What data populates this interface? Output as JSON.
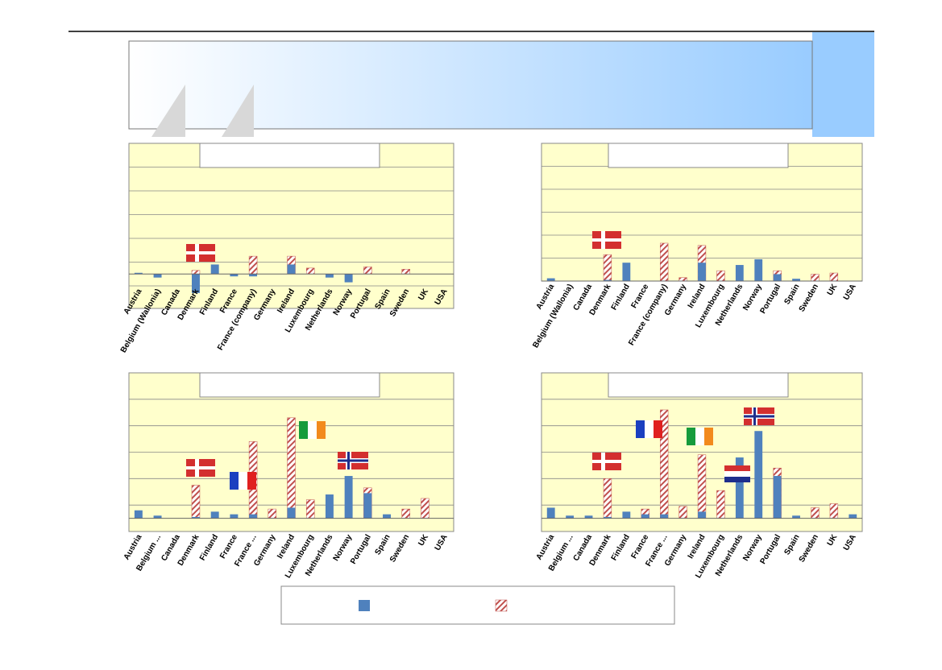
{
  "chart_data": [
    {
      "type": "bar",
      "grid": true,
      "ylim": [
        -0.5,
        5.5
      ],
      "yticks": [
        -0.5,
        0.5,
        1.5,
        2.5,
        3.5,
        4.5
      ],
      "categories": [
        "Austria",
        "Belgium (Wallonia)",
        "Canada",
        "Denmark",
        "Finland",
        "France",
        "France (company)",
        "Germany",
        "Ireland",
        "Luxembourg",
        "Netherlands",
        "Norway",
        "Portugal",
        "Spain",
        "Sweden",
        "UK",
        "USA"
      ],
      "series": [
        {
          "color": "#4f81bd",
          "values": [
            0.05,
            -0.15,
            0,
            -0.8,
            0.4,
            -0.1,
            -0.1,
            0,
            0.4,
            0,
            -0.15,
            -0.35,
            0,
            0,
            0,
            0,
            0
          ]
        },
        {
          "color": "#c0504d",
          "pattern": "hatch",
          "values": [
            0,
            0,
            0,
            0.15,
            0,
            0,
            0.75,
            0,
            0.75,
            0.25,
            0,
            0,
            0.3,
            0,
            0.2,
            0,
            0
          ]
        }
      ]
    },
    {
      "type": "bar",
      "grid": true,
      "ylim": [
        0,
        6
      ],
      "yticks": [
        0,
        1,
        2,
        3,
        4,
        5
      ],
      "categories": [
        "Austria",
        "Belgium (Wallonia)",
        "Canada",
        "Denmark",
        "Finland",
        "France",
        "France (company)",
        "Germany",
        "Ireland",
        "Luxembourg",
        "Netherlands",
        "Norway",
        "Portugal",
        "Spain",
        "Sweden",
        "UK",
        "USA"
      ],
      "series": [
        {
          "color": "#4f81bd",
          "values": [
            0.12,
            0,
            0,
            0.05,
            0.8,
            0,
            0,
            0,
            0.8,
            0,
            0.7,
            0.95,
            0.3,
            0.1,
            0,
            0,
            0
          ]
        },
        {
          "color": "#c0504d",
          "pattern": "hatch",
          "values": [
            0,
            0,
            0,
            1.15,
            0,
            0,
            1.65,
            0.15,
            1.55,
            0.45,
            0,
            0,
            0.45,
            0,
            0.3,
            0.35,
            0
          ]
        }
      ]
    },
    {
      "type": "bar",
      "grid": true,
      "ylim": [
        -0.5,
        5.5
      ],
      "yticks": [
        0.5,
        1.5,
        2.5,
        3.5,
        4.5
      ],
      "categories": [
        "Austria",
        "Belgium ...",
        "Canada",
        "Denmark",
        "Finland",
        "France",
        "France ...",
        "Germany",
        "Ireland",
        "Luxembourg",
        "Netherlands",
        "Norway",
        "Portugal",
        "Spain",
        "Sweden",
        "UK",
        "USA"
      ],
      "series": [
        {
          "color": "#4f81bd",
          "values": [
            0.3,
            0.1,
            0,
            0.05,
            0.25,
            0.15,
            0.15,
            0,
            0.4,
            0,
            0.9,
            1.6,
            0.95,
            0.15,
            0,
            0,
            0
          ]
        },
        {
          "color": "#c0504d",
          "pattern": "hatch",
          "values": [
            0,
            0,
            0,
            1.25,
            0,
            0,
            2.9,
            0.35,
            3.8,
            0.7,
            0,
            0,
            1.15,
            0,
            0.35,
            0.75,
            0
          ]
        }
      ]
    },
    {
      "type": "bar",
      "grid": true,
      "ylim": [
        -0.5,
        5.5
      ],
      "yticks": [
        0.5,
        1.5,
        2.5,
        3.5,
        4.5
      ],
      "categories": [
        "Austria",
        "Belgium ...",
        "Canada",
        "Denmark",
        "Finland",
        "France",
        "France ...",
        "Germany",
        "Ireland",
        "Luxembourg",
        "Netherlands",
        "Norway",
        "Portugal",
        "Spain",
        "Sweden",
        "UK",
        "USA"
      ],
      "series": [
        {
          "color": "#4f81bd",
          "values": [
            0.4,
            0.1,
            0.1,
            0.05,
            0.25,
            0.15,
            0.15,
            0,
            0.25,
            0,
            2.3,
            3.3,
            1.6,
            0.1,
            0,
            0,
            0.15
          ]
        },
        {
          "color": "#c0504d",
          "pattern": "hatch",
          "values": [
            0,
            0,
            0,
            1.5,
            0,
            0.35,
            4.1,
            0.45,
            2.4,
            1.05,
            0,
            0,
            1.9,
            0,
            0.4,
            0.55,
            0
          ]
        }
      ]
    }
  ]
}
